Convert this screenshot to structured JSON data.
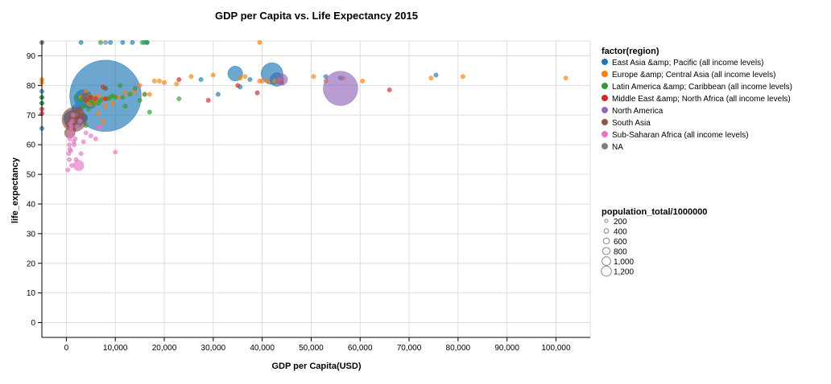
{
  "chart_data": {
    "type": "scatter",
    "title": "GDP per Capita vs. Life Expectancy 2015",
    "xlabel": "GDP per Capita(USD)",
    "ylabel": "life_expectancy",
    "xlim": [
      -5000,
      107000
    ],
    "ylim": [
      -5,
      95
    ],
    "x_ticks": [
      0,
      10000,
      20000,
      30000,
      40000,
      50000,
      60000,
      70000,
      80000,
      90000,
      100000
    ],
    "x_tick_labels": [
      "0",
      "10,000",
      "20,000",
      "30,000",
      "40,000",
      "50,000",
      "60,000",
      "70,000",
      "80,000",
      "90,000",
      "100,000"
    ],
    "y_ticks": [
      0,
      10,
      20,
      30,
      40,
      50,
      60,
      70,
      80,
      90
    ],
    "y_tick_labels": [
      "0",
      "10",
      "20",
      "30",
      "40",
      "50",
      "60",
      "70",
      "80",
      "90"
    ],
    "grid": true,
    "color_legend": {
      "title": "factor(region)",
      "placement": "right",
      "entries": [
        {
          "label": "East Asia &amp; Pacific (all income levels)",
          "color": "#1f77b4"
        },
        {
          "label": "Europe &amp; Central Asia (all income levels)",
          "color": "#ff7f0e"
        },
        {
          "label": "Latin America &amp; Caribbean (all income levels)",
          "color": "#2ca02c"
        },
        {
          "label": "Middle East &amp; North Africa (all income levels)",
          "color": "#d62728"
        },
        {
          "label": "North America",
          "color": "#9467bd"
        },
        {
          "label": "South Asia",
          "color": "#8c564b"
        },
        {
          "label": "Sub-Saharan Africa (all income levels)",
          "color": "#e377c2"
        },
        {
          "label": "NA",
          "color": "#7f7f7f"
        }
      ]
    },
    "size_legend": {
      "title": "population_total/1000000",
      "entries": [
        {
          "label": "200",
          "value": 200
        },
        {
          "label": "400",
          "value": 400
        },
        {
          "label": "600",
          "value": 600
        },
        {
          "label": "800",
          "value": 800
        },
        {
          "label": "1,000",
          "value": 1000
        },
        {
          "label": "1,200",
          "value": 1200
        }
      ]
    },
    "series": [
      {
        "name": "East Asia &amp; Pacific (all income levels)",
        "color": "#1f77b4",
        "points": [
          [
            -5000,
            65.5,
            5
          ],
          [
            -5000,
            74,
            5
          ],
          [
            -5000,
            76,
            5
          ],
          [
            -5000,
            78,
            5
          ],
          [
            2500,
            69,
            20
          ],
          [
            3000,
            69,
            30
          ],
          [
            3500,
            69,
            20
          ],
          [
            5000,
            74,
            30
          ],
          [
            8000,
            76.5,
            1370
          ],
          [
            3000,
            94.5,
            5
          ],
          [
            9000,
            94.5,
            5
          ],
          [
            11500,
            94.5,
            5
          ],
          [
            13500,
            94.5,
            5
          ],
          [
            16000,
            94.5,
            5
          ],
          [
            16500,
            94.5,
            5
          ],
          [
            27500,
            82,
            5
          ],
          [
            31000,
            77,
            5
          ],
          [
            34500,
            84,
            60
          ],
          [
            35500,
            79.5,
            5
          ],
          [
            37500,
            82,
            5
          ],
          [
            42000,
            84,
            127
          ],
          [
            43000,
            82,
            50
          ],
          [
            53000,
            83,
            5
          ],
          [
            56000,
            82.5,
            5
          ],
          [
            75500,
            83.5,
            5
          ],
          [
            3500,
            75.5,
            90
          ],
          [
            1500,
            68.5,
            100
          ],
          [
            2000,
            72,
            20
          ],
          [
            900,
            67,
            5
          ],
          [
            1000,
            69,
            60
          ],
          [
            7500,
            75.5,
            5
          ]
        ]
      },
      {
        "name": "Europe &amp; Central Asia (all income levels)",
        "color": "#ff7f0e",
        "points": [
          [
            -5000,
            81,
            5
          ],
          [
            -5000,
            82,
            5
          ],
          [
            3000,
            76,
            5
          ],
          [
            4000,
            78,
            5
          ],
          [
            5000,
            75,
            40
          ],
          [
            5500,
            74,
            5
          ],
          [
            6000,
            74,
            5
          ],
          [
            6500,
            76.5,
            5
          ],
          [
            7500,
            75.5,
            5
          ],
          [
            9500,
            74,
            5
          ],
          [
            10500,
            76,
            5
          ],
          [
            12000,
            77.5,
            5
          ],
          [
            14000,
            78,
            5
          ],
          [
            15000,
            80,
            5
          ],
          [
            16000,
            77,
            5
          ],
          [
            17000,
            77,
            5
          ],
          [
            18000,
            81.5,
            5
          ],
          [
            19000,
            81.5,
            5
          ],
          [
            20000,
            81,
            5
          ],
          [
            22500,
            80.5,
            5
          ],
          [
            25500,
            83,
            5
          ],
          [
            30000,
            83.5,
            5
          ],
          [
            35500,
            82.5,
            5
          ],
          [
            36500,
            83,
            5
          ],
          [
            39500,
            81.5,
            5
          ],
          [
            40000,
            81.5,
            5
          ],
          [
            41000,
            81.5,
            5
          ],
          [
            42500,
            81.5,
            5
          ],
          [
            43500,
            82,
            5
          ],
          [
            44000,
            81.5,
            5
          ],
          [
            50500,
            83,
            5
          ],
          [
            53000,
            81.5,
            5
          ],
          [
            56500,
            82.5,
            5
          ],
          [
            60500,
            81.5,
            5
          ],
          [
            74500,
            82.5,
            5
          ],
          [
            81000,
            83,
            5
          ],
          [
            102000,
            82.5,
            5
          ],
          [
            39500,
            94.5,
            5
          ],
          [
            13000,
            77,
            5
          ],
          [
            6500,
            70.5,
            5
          ],
          [
            8000,
            73,
            5
          ],
          [
            9000,
            76,
            5
          ],
          [
            2000,
            70,
            5
          ],
          [
            7500,
            68,
            5
          ]
        ]
      },
      {
        "name": "Latin America &amp; Caribbean (all income levels)",
        "color": "#2ca02c",
        "points": [
          [
            -5000,
            94.5,
            5
          ],
          [
            7000,
            94.5,
            5
          ],
          [
            15500,
            94.5,
            5
          ],
          [
            16500,
            94.5,
            5
          ],
          [
            -5000,
            74,
            5
          ],
          [
            -5000,
            76,
            5
          ],
          [
            2000,
            76,
            5
          ],
          [
            3000,
            75,
            5
          ],
          [
            4000,
            66.5,
            5
          ],
          [
            5500,
            74,
            5
          ],
          [
            6500,
            74,
            5
          ],
          [
            8000,
            79,
            5
          ],
          [
            8500,
            75.5,
            5
          ],
          [
            9000,
            76,
            5
          ],
          [
            10000,
            76,
            5
          ],
          [
            11000,
            80,
            5
          ],
          [
            11500,
            76,
            5
          ],
          [
            13000,
            77,
            5
          ],
          [
            14000,
            79,
            5
          ],
          [
            15000,
            75,
            5
          ],
          [
            16000,
            77,
            5
          ],
          [
            17000,
            71,
            5
          ],
          [
            23000,
            75.5,
            5
          ],
          [
            12000,
            73,
            5
          ],
          [
            7000,
            75,
            5
          ],
          [
            4500,
            72,
            5
          ],
          [
            9500,
            76.5,
            5
          ],
          [
            3500,
            73,
            5
          ],
          [
            5000,
            75,
            5
          ]
        ]
      },
      {
        "name": "Middle East &amp; North Africa (all income levels)",
        "color": "#d62728",
        "points": [
          [
            -5000,
            70.5,
            5
          ],
          [
            -5000,
            72,
            5
          ],
          [
            2500,
            69,
            5
          ],
          [
            3000,
            70,
            5
          ],
          [
            4000,
            75,
            5
          ],
          [
            5000,
            76,
            5
          ],
          [
            6000,
            75.5,
            5
          ],
          [
            7500,
            79.5,
            5
          ],
          [
            8000,
            75.5,
            5
          ],
          [
            23000,
            82,
            5
          ],
          [
            29000,
            75,
            5
          ],
          [
            39000,
            77.5,
            5
          ],
          [
            66000,
            78.5,
            5
          ],
          [
            35000,
            80,
            5
          ],
          [
            44000,
            81,
            5
          ],
          [
            1500,
            65,
            5
          ]
        ]
      },
      {
        "name": "North America",
        "color": "#9467bd",
        "points": [
          [
            56000,
            79,
            320
          ],
          [
            44000,
            82,
            36
          ]
        ]
      },
      {
        "name": "South Asia",
        "color": "#8c564b",
        "points": [
          [
            1600,
            68.5,
            160
          ],
          [
            1000,
            67,
            30
          ],
          [
            1300,
            69,
            20
          ],
          [
            2500,
            72,
            5
          ],
          [
            700,
            64,
            30
          ],
          [
            3000,
            72,
            5
          ],
          [
            8000,
            79,
            5
          ],
          [
            4000,
            76,
            20
          ],
          [
            5000,
            76,
            5
          ]
        ]
      },
      {
        "name": "Sub-Saharan Africa (all income levels)",
        "color": "#e377c2",
        "points": [
          [
            300,
            51.5,
            5
          ],
          [
            500,
            57,
            5
          ],
          [
            600,
            60,
            5
          ],
          [
            700,
            62,
            5
          ],
          [
            800,
            63,
            5
          ],
          [
            900,
            65,
            5
          ],
          [
            1000,
            66,
            5
          ],
          [
            1200,
            68,
            5
          ],
          [
            1500,
            61,
            5
          ],
          [
            1800,
            62,
            5
          ],
          [
            2000,
            55,
            5
          ],
          [
            2500,
            53,
            30
          ],
          [
            3000,
            57,
            5
          ],
          [
            3500,
            61,
            5
          ],
          [
            4000,
            64,
            5
          ],
          [
            5000,
            63,
            5
          ],
          [
            6000,
            62,
            5
          ],
          [
            6500,
            66,
            5
          ],
          [
            7000,
            66,
            5
          ],
          [
            10000,
            57.5,
            5
          ],
          [
            1100,
            53,
            5
          ],
          [
            900,
            58,
            5
          ],
          [
            1300,
            64,
            5
          ],
          [
            1600,
            60,
            5
          ],
          [
            600,
            55,
            5
          ],
          [
            800,
            67,
            5
          ],
          [
            1400,
            70,
            5
          ],
          [
            2200,
            66,
            5
          ],
          [
            2800,
            68,
            5
          ],
          [
            700,
            58.5,
            5
          ]
        ]
      },
      {
        "name": "NA",
        "color": "#7f7f7f",
        "points": [
          [
            -5000,
            94.5,
            5
          ],
          [
            8000,
            94.5,
            5
          ]
        ]
      }
    ]
  }
}
